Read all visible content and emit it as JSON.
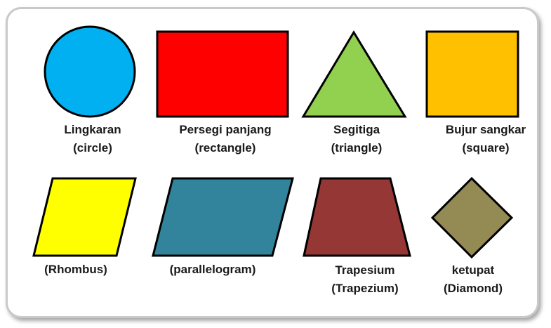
{
  "shapes": [
    {
      "id": "circle",
      "line1": "Lingkaran",
      "line2": "(circle)",
      "color": "#00b0f0"
    },
    {
      "id": "rectangle",
      "line1": "Persegi panjang",
      "line2": "(rectangle)",
      "color": "#ff0000"
    },
    {
      "id": "triangle",
      "line1": "Segitiga",
      "line2": "(triangle)",
      "color": "#92d050"
    },
    {
      "id": "square",
      "line1": "Bujur sangkar",
      "line2": "(square)",
      "color": "#ffc000"
    },
    {
      "id": "rhombus",
      "line1": "(Rhombus)",
      "line2": "",
      "color": "#ffff00"
    },
    {
      "id": "parallelogram",
      "line1": "(parallelogram)",
      "line2": "",
      "color": "#31849b"
    },
    {
      "id": "trapezium",
      "line1": "Trapesium",
      "line2": "(Trapezium)",
      "color": "#953735"
    },
    {
      "id": "diamond",
      "line1": "ketupat",
      "line2": "(Diamond)",
      "color": "#948a54"
    }
  ]
}
